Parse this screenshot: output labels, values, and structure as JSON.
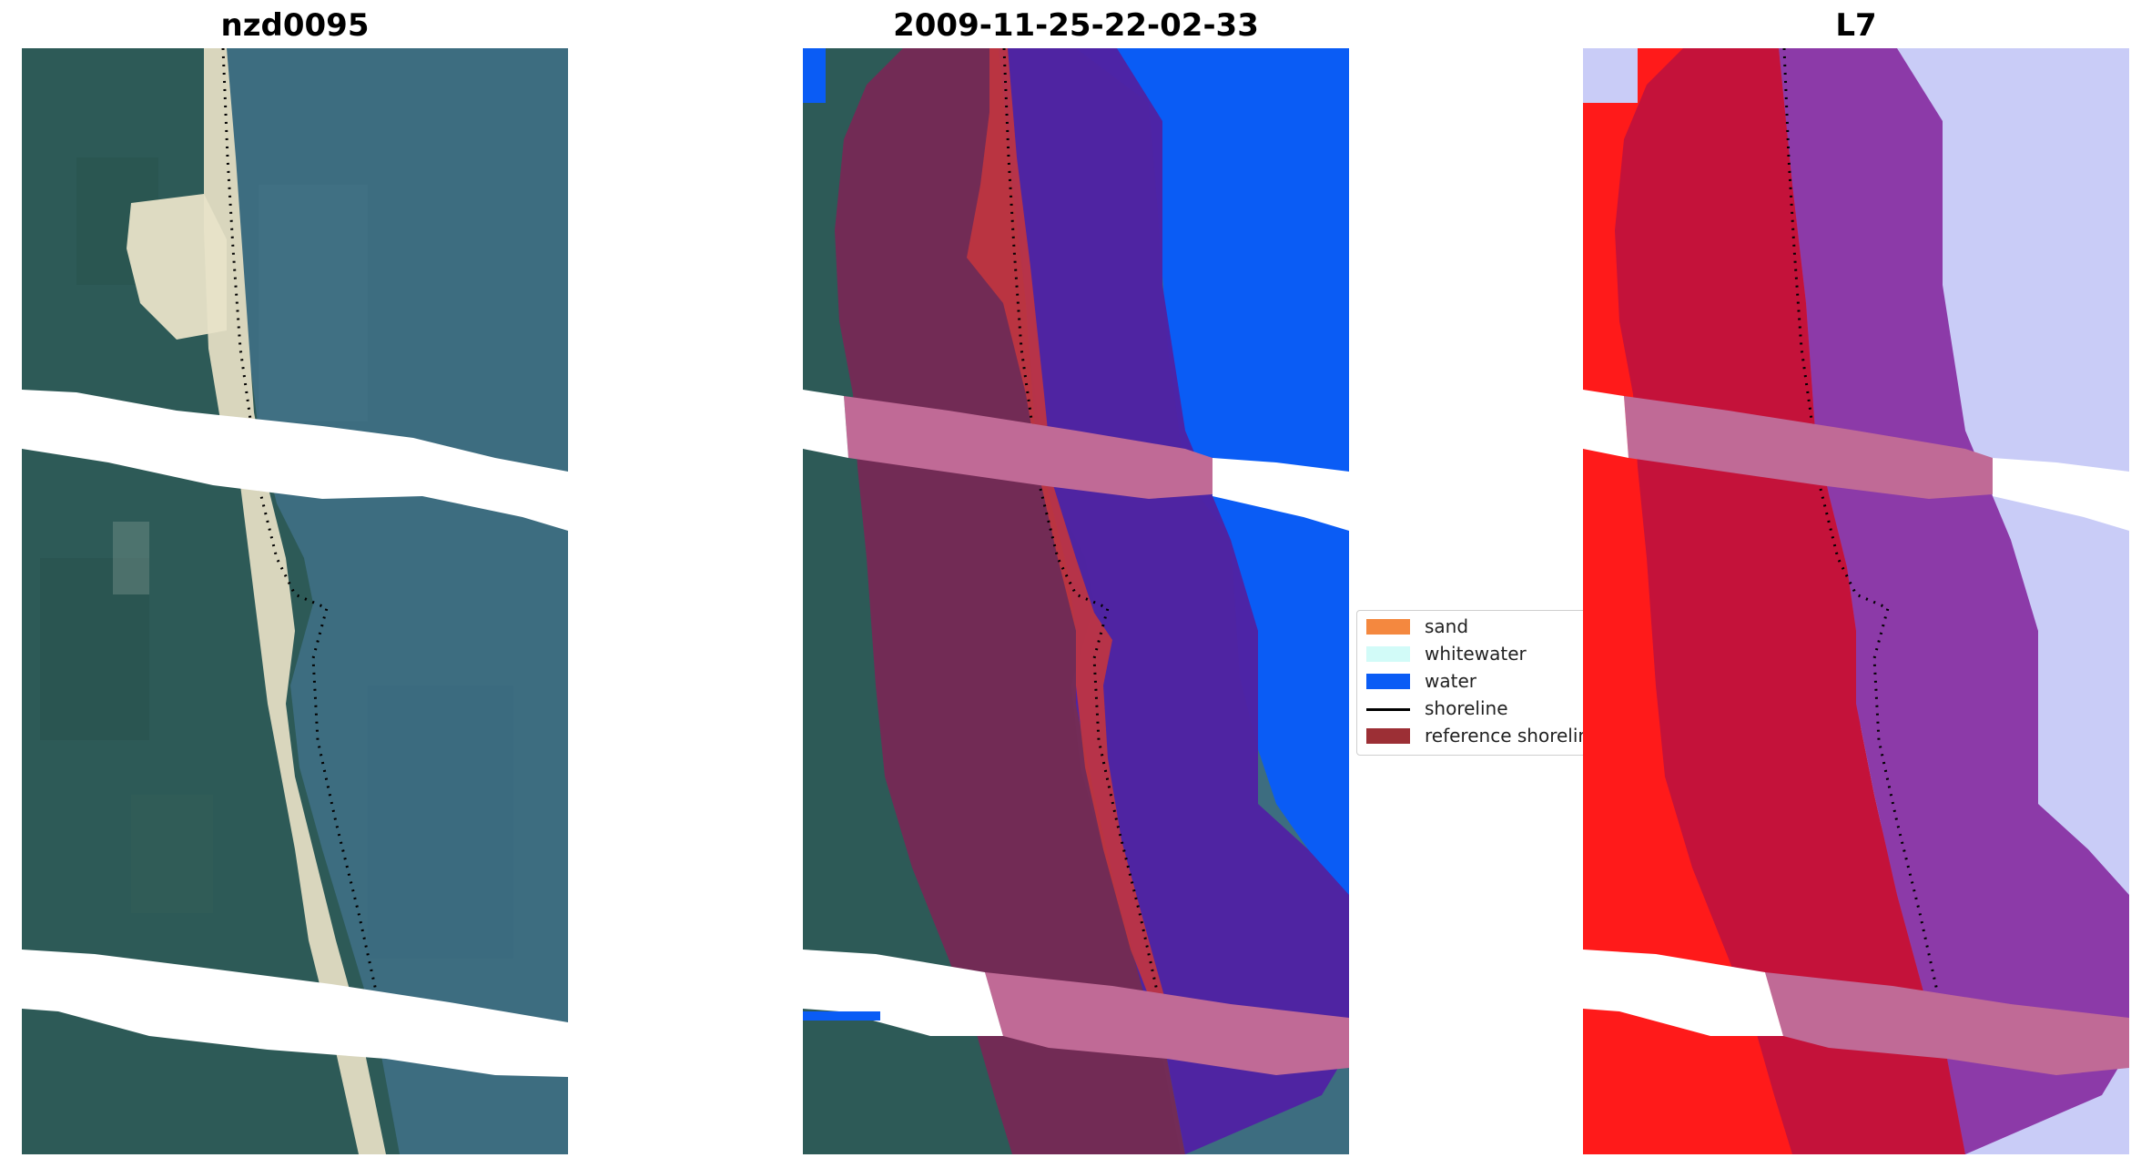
{
  "panels": [
    {
      "title": "nzd0095"
    },
    {
      "title": "2009-11-25-22-02-33"
    },
    {
      "title": "L7"
    }
  ],
  "legend": {
    "items": [
      {
        "label": "sand",
        "color": "#f4883f",
        "kind": "patch"
      },
      {
        "label": "whitewater",
        "color": "#d2fbf8",
        "kind": "patch"
      },
      {
        "label": "water",
        "color": "#0a5cf5",
        "kind": "patch"
      },
      {
        "label": "shoreline",
        "color": "#000000",
        "kind": "line"
      },
      {
        "label": "reference shoreline",
        "color": "#9c2f35",
        "kind": "patch"
      }
    ]
  },
  "colors": {
    "natural_land": "#2c5a58",
    "natural_water": "#3f6f84",
    "beach_sand": "#e6e0c6",
    "class_water": "#0a5cf5",
    "buffer_land": "#762a55",
    "buffer_water": "#4f22a3",
    "buffer_stripe": "#c06a96",
    "swir_land": "#ff1a1a",
    "swir_water": "#c7ccf8",
    "nodata": "#ffffff"
  }
}
